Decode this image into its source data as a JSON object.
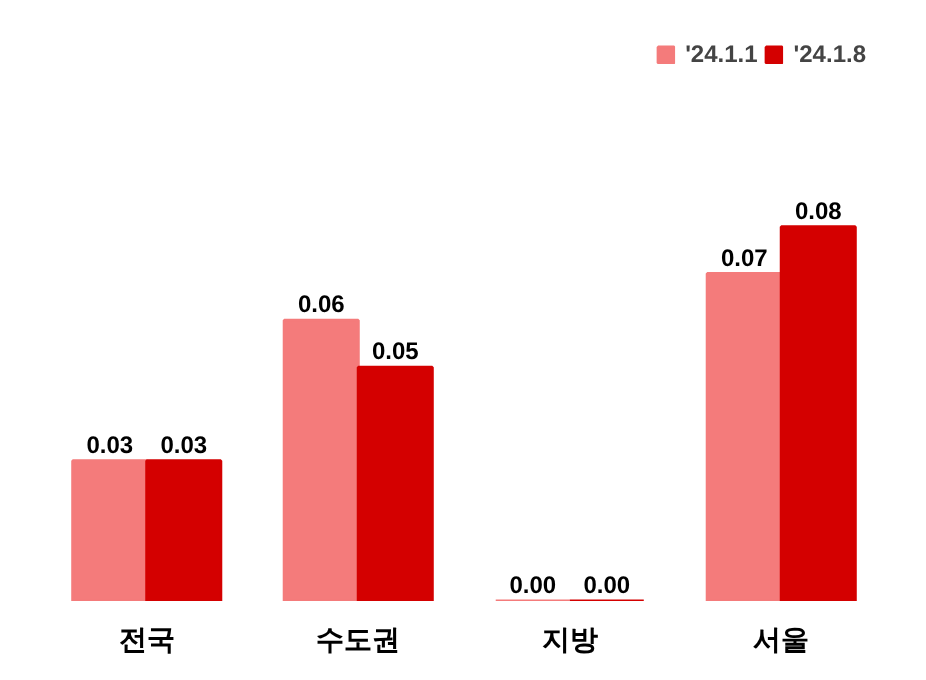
{
  "chart_data": {
    "type": "bar",
    "categories": [
      "전국",
      "수도권",
      "지방",
      "서울"
    ],
    "series": [
      {
        "name": "'24.1.1",
        "color": "#f47b7b",
        "values": [
          0.03,
          0.06,
          0.0,
          0.07
        ],
        "value_labels": [
          "0.03",
          "0.06",
          "0.00",
          "0.07"
        ]
      },
      {
        "name": "'24.1.8",
        "color": "#d40000",
        "values": [
          0.03,
          0.05,
          0.0,
          0.08
        ],
        "value_labels": [
          "0.03",
          "0.05",
          "0.00",
          "0.08"
        ]
      }
    ],
    "legend": "top right",
    "grid": false
  }
}
